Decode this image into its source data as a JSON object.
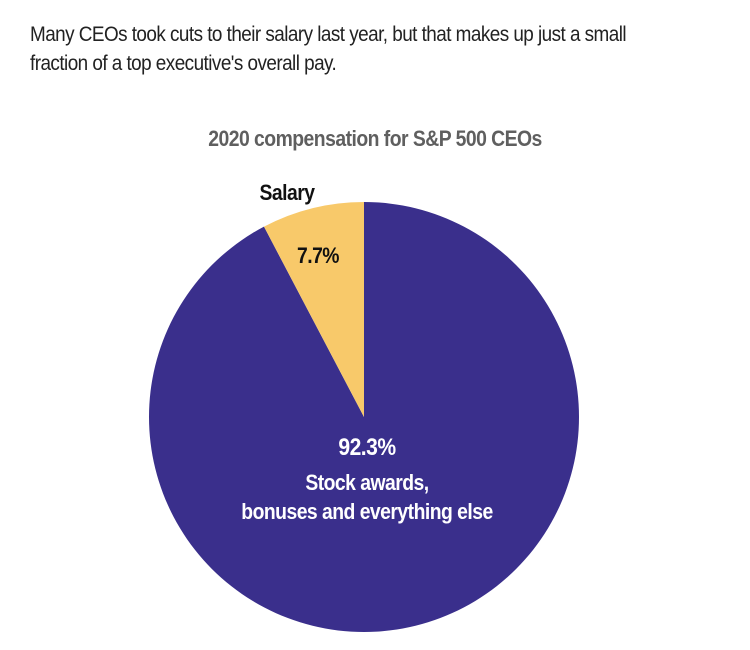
{
  "header": {
    "subtitle": "Many CEOs took cuts to their salary last year, but that makes up just a small fraction of a top executive's overall pay."
  },
  "chart_data": {
    "type": "pie",
    "title": "2020 compensation for S&P 500 CEOs",
    "slices": [
      {
        "name": "Salary",
        "value": 7.7,
        "value_label": "7.7%",
        "color": "#f8c96a"
      },
      {
        "name": "Stock awards, bonuses and everything else",
        "label_lines": [
          "Stock awards,",
          "bonuses and everything else"
        ],
        "value": 92.3,
        "value_label": "92.3%",
        "color": "#3a2f8c"
      }
    ],
    "start": "12 o'clock",
    "direction": "counter-clockwise for first slice"
  }
}
